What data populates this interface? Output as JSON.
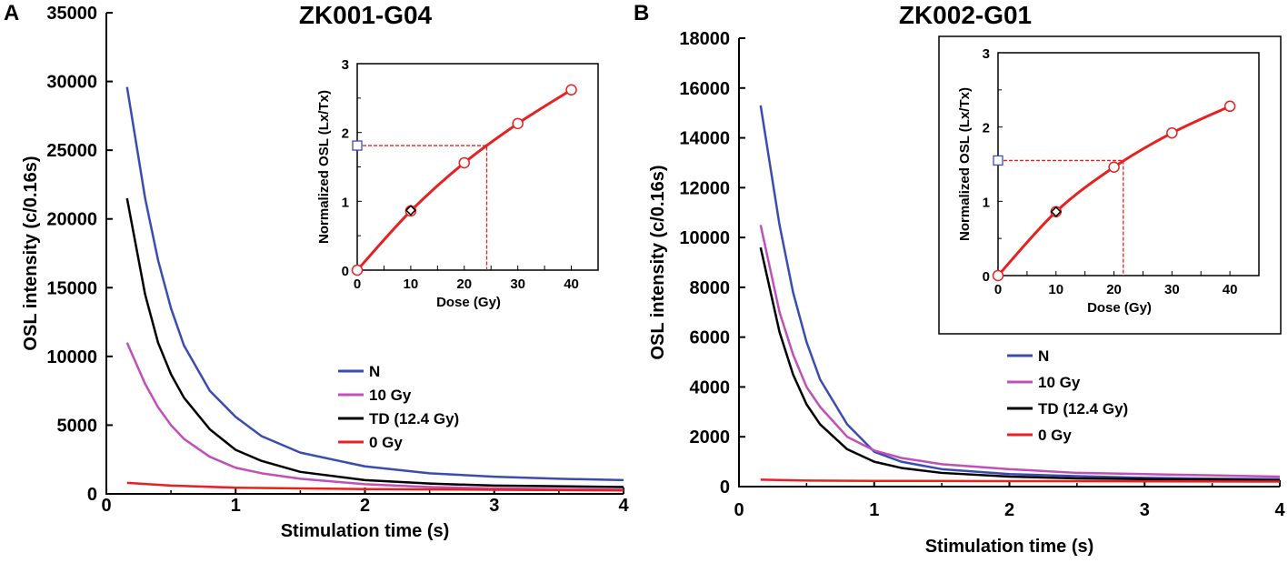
{
  "chart_data": [
    {
      "type": "line",
      "panel_label": "A",
      "title": "ZK001-G04",
      "xlabel": "Stimulation time (s)",
      "ylabel": "OSL intensity (c/0.16s)",
      "xlim": [
        0,
        4
      ],
      "ylim": [
        0,
        35000
      ],
      "xticks": [
        0,
        1,
        2,
        3,
        4
      ],
      "yticks": [
        0,
        5000,
        10000,
        15000,
        20000,
        25000,
        30000,
        35000
      ],
      "legend_position": "center-right",
      "series": [
        {
          "name": "N",
          "color": "#3b4cb0",
          "x": [
            0.16,
            0.3,
            0.4,
            0.5,
            0.6,
            0.8,
            1.0,
            1.2,
            1.5,
            2.0,
            2.5,
            3.0,
            3.5,
            4.0
          ],
          "y": [
            29600,
            21500,
            17000,
            13500,
            10800,
            7500,
            5600,
            4200,
            3000,
            2000,
            1500,
            1250,
            1100,
            1000
          ]
        },
        {
          "name": "10 Gy",
          "color": "#c050b8",
          "x": [
            0.16,
            0.3,
            0.4,
            0.5,
            0.6,
            0.8,
            1.0,
            1.2,
            1.5,
            2.0,
            2.5,
            3.0,
            3.5,
            4.0
          ],
          "y": [
            11000,
            8000,
            6300,
            5000,
            4000,
            2700,
            1900,
            1500,
            1100,
            700,
            500,
            400,
            350,
            300
          ]
        },
        {
          "name": "TD (12.4 Gy)",
          "color": "#000000",
          "x": [
            0.16,
            0.3,
            0.4,
            0.5,
            0.6,
            0.8,
            1.0,
            1.2,
            1.5,
            2.0,
            2.5,
            3.0,
            3.5,
            4.0
          ],
          "y": [
            21500,
            14500,
            11000,
            8700,
            7000,
            4700,
            3200,
            2400,
            1600,
            1000,
            750,
            600,
            550,
            500
          ]
        },
        {
          "name": "0 Gy",
          "color": "#e82020",
          "x": [
            0.16,
            0.5,
            1.0,
            2.0,
            3.0,
            4.0
          ],
          "y": [
            800,
            600,
            450,
            350,
            300,
            250
          ]
        }
      ],
      "inset": {
        "xlabel": "Dose (Gy)",
        "ylabel": "Normalized OSL (Lx/Tx)",
        "xlim": [
          0,
          45
        ],
        "ylim": [
          0,
          3
        ],
        "xticks": [
          0,
          10,
          20,
          30,
          40
        ],
        "yticks": [
          0,
          1,
          2,
          3
        ],
        "dose": [
          0,
          10,
          20,
          30,
          40
        ],
        "lxtx": [
          0,
          0.86,
          1.56,
          2.13,
          2.62
        ],
        "recycle": {
          "dose": 10,
          "lxtx": 0.87
        },
        "natural_lxtx": 1.81,
        "de": 24.2
      }
    },
    {
      "type": "line",
      "panel_label": "B",
      "title": "ZK002-G01",
      "xlabel": "Stimulation time (s)",
      "ylabel": "OSL intensity (c/0.16s)",
      "xlim": [
        0,
        4
      ],
      "ylim": [
        0,
        18000
      ],
      "xticks": [
        0,
        1,
        2,
        3,
        4
      ],
      "yticks": [
        0,
        2000,
        4000,
        6000,
        8000,
        10000,
        12000,
        14000,
        16000,
        18000
      ],
      "legend_position": "center-right",
      "series": [
        {
          "name": "N",
          "color": "#3b4cb0",
          "x": [
            0.16,
            0.3,
            0.4,
            0.5,
            0.6,
            0.8,
            1.0,
            1.2,
            1.5,
            2.0,
            2.5,
            3.0,
            3.5,
            4.0
          ],
          "y": [
            15300,
            10500,
            7800,
            5800,
            4300,
            2500,
            1400,
            1000,
            700,
            500,
            420,
            350,
            320,
            300
          ]
        },
        {
          "name": "10 Gy",
          "color": "#c050b8",
          "x": [
            0.16,
            0.3,
            0.4,
            0.5,
            0.6,
            0.8,
            1.0,
            1.2,
            1.5,
            2.0,
            2.5,
            3.0,
            3.5,
            4.0
          ],
          "y": [
            10500,
            7000,
            5300,
            4000,
            3200,
            2000,
            1450,
            1150,
            900,
            700,
            550,
            500,
            450,
            400
          ]
        },
        {
          "name": "TD (12.4 Gy)",
          "color": "#000000",
          "x": [
            0.16,
            0.3,
            0.4,
            0.5,
            0.6,
            0.8,
            1.0,
            1.2,
            1.5,
            2.0,
            2.5,
            3.0,
            3.5,
            4.0
          ],
          "y": [
            9600,
            6200,
            4500,
            3300,
            2500,
            1500,
            1000,
            750,
            550,
            400,
            330,
            300,
            280,
            250
          ]
        },
        {
          "name": "0 Gy",
          "color": "#e82020",
          "x": [
            0.16,
            0.5,
            1.0,
            2.0,
            3.0,
            4.0
          ],
          "y": [
            280,
            240,
            230,
            220,
            210,
            200
          ]
        }
      ],
      "inset": {
        "xlabel": "Dose (Gy)",
        "ylabel": "Normalized OSL (Lx/Tx)",
        "xlim": [
          0,
          45
        ],
        "ylim": [
          0,
          3
        ],
        "xticks": [
          0,
          10,
          20,
          30,
          40
        ],
        "yticks": [
          0,
          1,
          2,
          3
        ],
        "dose": [
          0,
          10,
          20,
          30,
          40
        ],
        "lxtx": [
          0,
          0.86,
          1.46,
          1.92,
          2.28
        ],
        "recycle": {
          "dose": 10,
          "lxtx": 0.86
        },
        "natural_lxtx": 1.55,
        "de": 21.6
      }
    }
  ]
}
